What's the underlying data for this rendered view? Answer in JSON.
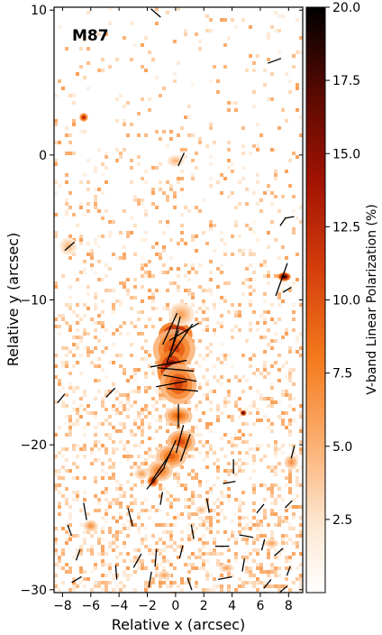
{
  "chart_data": {
    "type": "heatmap",
    "annotation": "M87",
    "xlabel": "Relative x (arcsec)",
    "ylabel": "Relative y (arcsec)",
    "xlim": [
      -8.6,
      9.0
    ],
    "ylim": [
      -30.2,
      10.2
    ],
    "x_ticks": [
      -8,
      -6,
      -4,
      -2,
      0,
      2,
      4,
      6,
      8
    ],
    "y_ticks": [
      10,
      0,
      -10,
      -20,
      -30
    ],
    "colorbar": {
      "label": "V-band Linear Polarization (%)",
      "range": [
        0,
        20
      ],
      "ticks": [
        "20.0",
        "17.5",
        "15.0",
        "12.5",
        "10.0",
        "7.5",
        "5.0",
        "2.5"
      ],
      "tick_values": [
        20,
        17.5,
        15,
        12.5,
        10,
        7.5,
        5,
        2.5
      ]
    },
    "blobs": [
      {
        "x": 0.0,
        "y": -12.4,
        "rx": 1.2,
        "ry": 0.9,
        "value": 20
      },
      {
        "x": -0.1,
        "y": -13.4,
        "rx": 1.5,
        "ry": 1.4,
        "value": 12
      },
      {
        "x": -0.3,
        "y": -14.8,
        "rx": 1.0,
        "ry": 1.3,
        "value": 19
      },
      {
        "x": 0.2,
        "y": -15.8,
        "rx": 1.3,
        "ry": 1.4,
        "value": 12
      },
      {
        "x": 0.4,
        "y": -11.0,
        "rx": 0.9,
        "ry": 0.8,
        "value": 6
      },
      {
        "x": 0.2,
        "y": -18.0,
        "rx": 1.0,
        "ry": 0.6,
        "value": 10
      },
      {
        "x": 0.4,
        "y": -19.8,
        "rx": 1.0,
        "ry": 0.8,
        "value": 11
      },
      {
        "x": -0.3,
        "y": -20.8,
        "rx": 1.1,
        "ry": 0.8,
        "value": 10
      },
      {
        "x": -1.1,
        "y": -21.8,
        "rx": 0.9,
        "ry": 0.7,
        "value": 9
      },
      {
        "x": -1.6,
        "y": -22.5,
        "rx": 0.4,
        "ry": 0.4,
        "value": 15
      },
      {
        "x": 0.0,
        "y": -0.4,
        "rx": 0.6,
        "ry": 0.4,
        "value": 5
      },
      {
        "x": -6.5,
        "y": 2.6,
        "rx": 0.3,
        "ry": 0.3,
        "value": 14
      },
      {
        "x": 7.7,
        "y": -8.4,
        "rx": 0.45,
        "ry": 0.3,
        "value": 20
      },
      {
        "x": 4.8,
        "y": -17.8,
        "rx": 0.22,
        "ry": 0.2,
        "value": 20
      },
      {
        "x": -7.6,
        "y": -6.3,
        "rx": 0.6,
        "ry": 0.6,
        "value": 5
      },
      {
        "x": -6.0,
        "y": -25.6,
        "rx": 0.5,
        "ry": 0.4,
        "value": 7
      },
      {
        "x": 8.2,
        "y": -21.2,
        "rx": 0.5,
        "ry": 0.5,
        "value": 7
      },
      {
        "x": -2.4,
        "y": -22.0,
        "rx": 0.5,
        "ry": 0.4,
        "value": 6
      },
      {
        "x": 1.8,
        "y": -24.5,
        "rx": 0.4,
        "ry": 0.3,
        "value": 5
      },
      {
        "x": 3.6,
        "y": -28.5,
        "rx": 0.5,
        "ry": 0.3,
        "value": 6
      },
      {
        "x": -0.8,
        "y": -29.0,
        "rx": 0.5,
        "ry": 0.3,
        "value": 6
      },
      {
        "x": 6.8,
        "y": -26.8,
        "rx": 0.5,
        "ry": 0.3,
        "value": 6
      }
    ],
    "vectors": [
      {
        "x": 0.0,
        "y": -12.4,
        "angle": 15,
        "length": 2.6
      },
      {
        "x": -0.4,
        "y": -12.0,
        "angle": 25,
        "length": 2.4
      },
      {
        "x": 0.4,
        "y": -12.8,
        "angle": 35,
        "length": 2.8
      },
      {
        "x": -0.2,
        "y": -13.2,
        "angle": 20,
        "length": 2.4
      },
      {
        "x": 0.6,
        "y": -12.2,
        "angle": 60,
        "length": 2.4
      },
      {
        "x": -0.5,
        "y": -14.4,
        "angle": 80,
        "length": 2.6
      },
      {
        "x": 0.0,
        "y": -14.8,
        "angle": 95,
        "length": 2.6
      },
      {
        "x": 0.3,
        "y": -15.4,
        "angle": 100,
        "length": 2.4
      },
      {
        "x": -0.3,
        "y": -15.8,
        "angle": 80,
        "length": 2.2
      },
      {
        "x": 0.5,
        "y": -16.2,
        "angle": 95,
        "length": 2.2
      },
      {
        "x": 0.2,
        "y": -18.0,
        "angle": 0,
        "length": 1.6
      },
      {
        "x": 0.3,
        "y": -19.6,
        "angle": 15,
        "length": 2.0
      },
      {
        "x": 0.7,
        "y": -20.2,
        "angle": 20,
        "length": 2.0
      },
      {
        "x": -0.4,
        "y": -20.6,
        "angle": 25,
        "length": 2.0
      },
      {
        "x": -1.0,
        "y": -21.5,
        "angle": 35,
        "length": 2.2
      },
      {
        "x": -1.4,
        "y": -22.3,
        "angle": 40,
        "length": 2.0
      },
      {
        "x": 0.4,
        "y": -0.3,
        "angle": 25,
        "length": 1.0
      },
      {
        "x": -4.6,
        "y": -16.4,
        "angle": 45,
        "length": 0.9
      },
      {
        "x": -7.5,
        "y": -6.3,
        "angle": 50,
        "length": 0.9
      },
      {
        "x": 7.5,
        "y": -8.6,
        "angle": 20,
        "length": 2.4
      },
      {
        "x": 7.9,
        "y": -9.3,
        "angle": 60,
        "length": 0.7
      },
      {
        "x": 7.0,
        "y": 6.5,
        "angle": 70,
        "length": 1.0
      },
      {
        "x": 7.6,
        "y": -4.6,
        "angle": 35,
        "length": 0.7
      },
      {
        "x": 8.1,
        "y": -4.3,
        "angle": 80,
        "length": 0.6
      },
      {
        "x": -1.4,
        "y": 9.8,
        "angle": -50,
        "length": 0.9
      },
      {
        "x": -8.1,
        "y": -16.8,
        "angle": 40,
        "length": 0.8
      },
      {
        "x": 8.3,
        "y": -20.5,
        "angle": 15,
        "length": 0.9
      },
      {
        "x": -6.4,
        "y": -24.6,
        "angle": -10,
        "length": 1.2
      },
      {
        "x": -3.2,
        "y": -25.0,
        "angle": -15,
        "length": 1.3
      },
      {
        "x": -1.0,
        "y": -23.7,
        "angle": 10,
        "length": 0.9
      },
      {
        "x": 2.3,
        "y": -24.2,
        "angle": -10,
        "length": 1.0
      },
      {
        "x": 3.8,
        "y": -22.6,
        "angle": 80,
        "length": 0.9
      },
      {
        "x": 4.1,
        "y": -21.5,
        "angle": 0,
        "length": 1.0
      },
      {
        "x": 6.0,
        "y": -24.4,
        "angle": 40,
        "length": 0.8
      },
      {
        "x": 8.0,
        "y": -24.1,
        "angle": 45,
        "length": 0.7
      },
      {
        "x": -7.5,
        "y": -25.9,
        "angle": -20,
        "length": 0.8
      },
      {
        "x": -6.9,
        "y": -27.6,
        "angle": 20,
        "length": 0.8
      },
      {
        "x": -2.7,
        "y": -28.0,
        "angle": 30,
        "length": 1.1
      },
      {
        "x": -1.4,
        "y": -27.8,
        "angle": 5,
        "length": 1.2
      },
      {
        "x": 0.4,
        "y": -27.4,
        "angle": 15,
        "length": 0.9
      },
      {
        "x": 1.2,
        "y": -26.0,
        "angle": -10,
        "length": 1.0
      },
      {
        "x": 3.3,
        "y": -27.0,
        "angle": 90,
        "length": 1.0
      },
      {
        "x": 5.0,
        "y": -26.3,
        "angle": -80,
        "length": 1.0
      },
      {
        "x": 6.2,
        "y": -26.9,
        "angle": 15,
        "length": 0.8
      },
      {
        "x": 7.3,
        "y": -27.4,
        "angle": 50,
        "length": 0.8
      },
      {
        "x": 8.0,
        "y": -28.7,
        "angle": 20,
        "length": 0.7
      },
      {
        "x": -4.2,
        "y": -28.8,
        "angle": -5,
        "length": 1.0
      },
      {
        "x": -1.8,
        "y": -29.3,
        "angle": 10,
        "length": 1.1
      },
      {
        "x": 1.0,
        "y": -29.6,
        "angle": -20,
        "length": 0.9
      },
      {
        "x": 3.5,
        "y": -29.2,
        "angle": 80,
        "length": 1.0
      },
      {
        "x": 4.8,
        "y": -28.3,
        "angle": 10,
        "length": 0.9
      },
      {
        "x": -7.0,
        "y": -29.3,
        "angle": 60,
        "length": 0.8
      },
      {
        "x": 6.5,
        "y": -29.6,
        "angle": 40,
        "length": 0.8
      },
      {
        "x": 7.6,
        "y": -30.0,
        "angle": 50,
        "length": 0.8
      }
    ]
  }
}
